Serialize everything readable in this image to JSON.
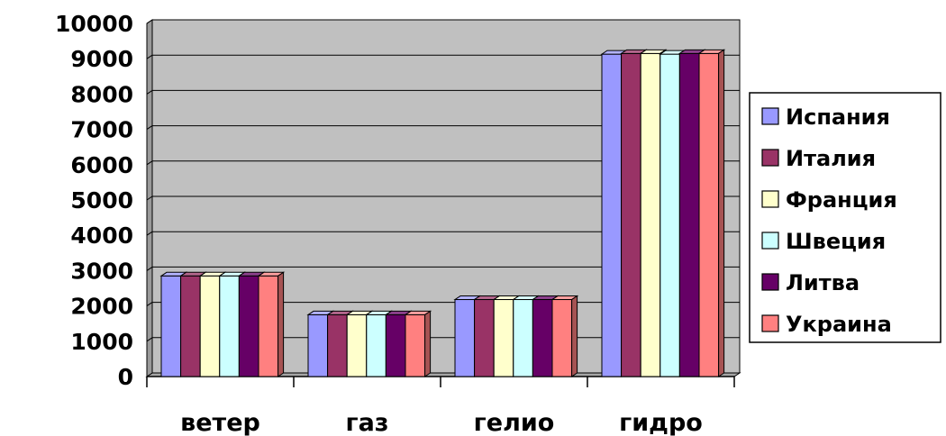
{
  "chart_data": {
    "type": "bar",
    "categories": [
      "ветер",
      "газ",
      "гелио",
      "гидро"
    ],
    "series": [
      {
        "name": "Испания",
        "color": "#9999ff",
        "values": [
          2850,
          1750,
          2180,
          9130
        ]
      },
      {
        "name": "Италия",
        "color": "#993366",
        "values": [
          2850,
          1750,
          2180,
          9150
        ]
      },
      {
        "name": "Франция",
        "color": "#ffffcc",
        "values": [
          2850,
          1750,
          2180,
          9150
        ]
      },
      {
        "name": "Швеция",
        "color": "#ccffff",
        "values": [
          2850,
          1750,
          2180,
          9130
        ]
      },
      {
        "name": "Литва",
        "color": "#660066",
        "values": [
          2850,
          1750,
          2180,
          9150
        ]
      },
      {
        "name": "Украина",
        "color": "#ff8080",
        "values": [
          2850,
          1750,
          2180,
          9150
        ]
      }
    ],
    "ylim": [
      0,
      10000
    ],
    "yticks": [
      "0",
      "1000",
      "2000",
      "3000",
      "4000",
      "5000",
      "6000",
      "7000",
      "8000",
      "9000",
      "10000"
    ],
    "grid": true,
    "legend": "right",
    "wall_color": "#c0c0c0"
  }
}
